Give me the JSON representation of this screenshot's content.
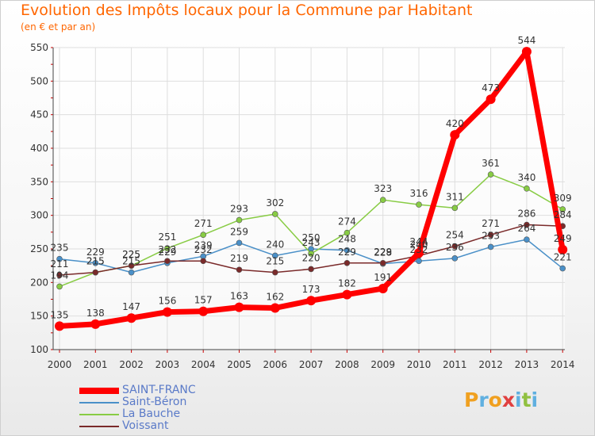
{
  "header": {
    "title": "Evolution des Impôts locaux pour la Commune par Habitant",
    "subtitle": "(en € et par an)"
  },
  "logo": {
    "letters": [
      "P",
      "r",
      "o",
      "x",
      "i",
      "t",
      "i"
    ],
    "colors": [
      "#f0a020",
      "#60b0e0",
      "#f0a020",
      "#e04040",
      "#60b0e0",
      "#90c040",
      "#60b0e0"
    ]
  },
  "chart_data": {
    "type": "line",
    "x": [
      "2000",
      "2001",
      "2002",
      "2003",
      "2004",
      "2005",
      "2006",
      "2007",
      "2008",
      "2009",
      "2010",
      "2011",
      "2012",
      "2013",
      "2014"
    ],
    "ylim": [
      100,
      550
    ],
    "yticks": [
      "100",
      "150",
      "200",
      "250",
      "300",
      "350",
      "400",
      "450",
      "500",
      "550"
    ],
    "grid": true,
    "legend_position": "bottom-left",
    "series": [
      {
        "name": "SAINT-FRANC",
        "color": "#ff0000",
        "values": [
          135,
          138,
          147,
          156,
          157,
          163,
          162,
          173,
          182,
          191,
          244,
          420,
          473,
          544,
          249
        ]
      },
      {
        "name": "Saint-Béron",
        "color": "#4a90c8",
        "values": [
          235,
          229,
          215,
          229,
          239,
          259,
          240,
          250,
          248,
          228,
          232,
          236,
          253,
          264,
          221
        ]
      },
      {
        "name": "La Bauche",
        "color": "#88cc44",
        "values": [
          194,
          215,
          225,
          251,
          271,
          293,
          302,
          243,
          274,
          323,
          316,
          311,
          361,
          340,
          309
        ]
      },
      {
        "name": "Voissant",
        "color": "#7a2a2a",
        "values": [
          211,
          215,
          225,
          232,
          232,
          219,
          215,
          220,
          229,
          229,
          240,
          254,
          271,
          286,
          284
        ]
      }
    ]
  }
}
